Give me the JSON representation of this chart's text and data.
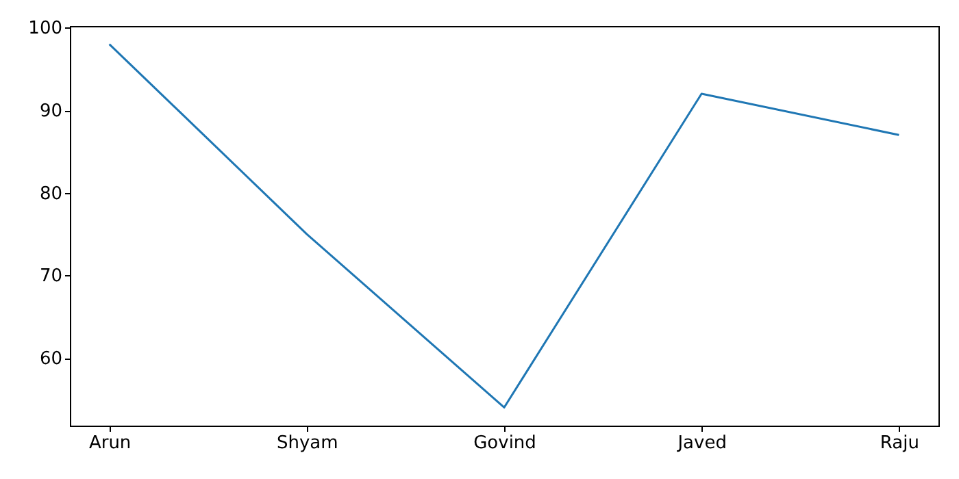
{
  "chart_data": {
    "type": "line",
    "categories": [
      "Arun",
      "Shyam",
      "Govind",
      "Javed",
      "Raju"
    ],
    "series": [
      {
        "color": "#1f77b4",
        "values": [
          98,
          75,
          54,
          92,
          87
        ]
      }
    ],
    "ylim": [
      51.8,
      100.2
    ],
    "yticks": [
      60,
      70,
      80,
      90,
      100
    ],
    "grid": false
  }
}
